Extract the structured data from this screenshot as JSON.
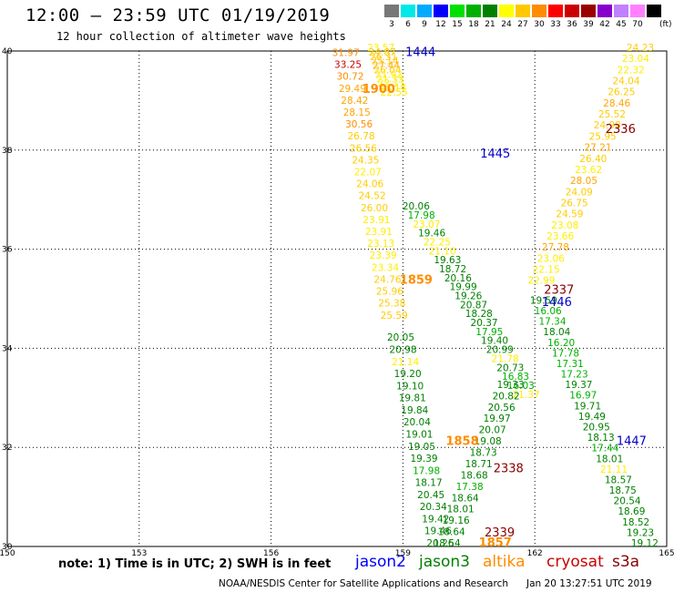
{
  "header": {
    "title": "12:00 – 23:59 UTC 01/19/2019",
    "subtitle": "12 hour collection of altimeter wave heights"
  },
  "color_scale": {
    "unit": "(ft)",
    "bins": [
      {
        "label": "3",
        "color": "#777777"
      },
      {
        "label": "6",
        "color": "#00e8e8"
      },
      {
        "label": "9",
        "color": "#00aaff"
      },
      {
        "label": "12",
        "color": "#0000ff"
      },
      {
        "label": "15",
        "color": "#00e000"
      },
      {
        "label": "18",
        "color": "#00b000"
      },
      {
        "label": "21",
        "color": "#008000"
      },
      {
        "label": "24",
        "color": "#ffff00"
      },
      {
        "label": "27",
        "color": "#ffc800"
      },
      {
        "label": "30",
        "color": "#ff8c00"
      },
      {
        "label": "33",
        "color": "#ff0000"
      },
      {
        "label": "36",
        "color": "#cc0000"
      },
      {
        "label": "39",
        "color": "#990000"
      },
      {
        "label": "42",
        "color": "#8800cc"
      },
      {
        "label": "45",
        "color": "#c080ff"
      },
      {
        "label": "70",
        "color": "#ff80ff"
      },
      {
        "label": "",
        "color": "#000000"
      }
    ]
  },
  "map": {
    "lon_ticks": [
      "150",
      "153",
      "156",
      "159",
      "162",
      "165"
    ],
    "lat_ticks": [
      "40",
      "38",
      "36",
      "34",
      "32",
      "30"
    ],
    "lon_range": [
      150,
      165
    ],
    "lat_range": [
      30,
      40
    ],
    "grid": "dotted",
    "passes": [
      {
        "label": "1444",
        "satellite": "jason2",
        "lon": 159.4,
        "lat": 39.9
      },
      {
        "label": "1445",
        "satellite": "jason2",
        "lon": 161.1,
        "lat": 37.85
      },
      {
        "label": "1446",
        "satellite": "jason2",
        "lon": 162.5,
        "lat": 34.85
      },
      {
        "label": "1447",
        "satellite": "jason2",
        "lon": 164.2,
        "lat": 32.05
      },
      {
        "label": "1900",
        "satellite": "altika",
        "lon": 158.45,
        "lat": 39.15
      },
      {
        "label": "1859",
        "satellite": "altika",
        "lon": 159.3,
        "lat": 35.3
      },
      {
        "label": "1858",
        "satellite": "altika",
        "lon": 160.35,
        "lat": 32.05
      },
      {
        "label": "1857",
        "satellite": "altika",
        "lon": 161.1,
        "lat": 30.0
      },
      {
        "label": "2336",
        "satellite": "s3a",
        "lon": 163.95,
        "lat": 38.35
      },
      {
        "label": "2337",
        "satellite": "s3a",
        "lon": 162.55,
        "lat": 35.1
      },
      {
        "label": "2338",
        "satellite": "s3a",
        "lon": 161.4,
        "lat": 31.5
      },
      {
        "label": "2339",
        "satellite": "s3a",
        "lon": 161.2,
        "lat": 30.2
      }
    ],
    "tracks": [
      {
        "satellite": "altika_a",
        "lon0": 157.7,
        "lat0": 39.9,
        "lon1": 158.8,
        "lat1": 34.6,
        "values": [
          "31.97",
          "33.25",
          "30.72",
          "29.49",
          "28.42",
          "28.15",
          "30.56",
          "26.78",
          "26.56",
          "24.35",
          "22.07",
          "24.06",
          "24.52",
          "26.00",
          "23.91",
          "23.91",
          "23.13",
          "23.39",
          "23.34",
          "24.76",
          "25.96",
          "25.38",
          "25.59"
        ]
      },
      {
        "satellite": "altika_b",
        "lon0": 158.5,
        "lat0": 40.0,
        "lon1": 158.8,
        "lat1": 39.1,
        "values": [
          "23.57",
          "24.87",
          "26.31",
          "25.14",
          "27.44",
          "26.04",
          "21.92",
          "21.33",
          "22.11",
          "23.14",
          "22.55"
        ]
      },
      {
        "satellite": "jason3_a",
        "lon0": 158.95,
        "lat0": 34.15,
        "lon1": 159.85,
        "lat1": 30.0,
        "values": [
          "20.05",
          "20.98",
          "21.14",
          "19.20",
          "19.10",
          "19.81",
          "19.84",
          "20.04",
          "19.01",
          "19.05",
          "19.39",
          "17.98",
          "18.17",
          "20.45",
          "20.34",
          "19.42",
          "19.46",
          "20.26"
        ]
      },
      {
        "satellite": "jason3_b",
        "lon0": 159.3,
        "lat0": 36.8,
        "lon1": 161.8,
        "lat1": 33.0,
        "values": [
          "20.06",
          "17.98",
          "23.07",
          "19.46",
          "22.25",
          "21.10",
          "19.63",
          "18.72",
          "20.16",
          "19.99",
          "19.26",
          "20.87",
          "18.28",
          "20.37",
          "17.95",
          "19.40",
          "20.99",
          "21.78",
          "20.73",
          "16.83",
          "16.03",
          "21.37"
        ]
      },
      {
        "satellite": "jason3_c",
        "lon0": 161.45,
        "lat0": 33.2,
        "lon1": 160.0,
        "lat1": 30.0,
        "values": [
          "19.33",
          "20.82",
          "20.56",
          "19.97",
          "20.07",
          "19.08",
          "18.73",
          "18.71",
          "18.68",
          "17.38",
          "18.64",
          "18.01",
          "19.16",
          "18.64",
          "18.54"
        ]
      },
      {
        "satellite": "s3a_a",
        "lon0": 164.4,
        "lat0": 40.0,
        "lon1": 162.15,
        "lat1": 35.3,
        "values": [
          "24.23",
          "23.04",
          "22.32",
          "24.04",
          "26.25",
          "28.46",
          "25.52",
          "24.98",
          "25.95",
          "27.21",
          "26.40",
          "23.62",
          "28.05",
          "24.09",
          "26.75",
          "24.59",
          "23.08",
          "23.66",
          "27.78",
          "23.06",
          "22.15",
          "22.99"
        ]
      },
      {
        "satellite": "jason3_d",
        "lon0": 162.2,
        "lat0": 34.9,
        "lon1": 164.5,
        "lat1": 30.0,
        "values": [
          "19.59",
          "16.06",
          "17.34",
          "18.04",
          "16.20",
          "17.78",
          "17.31",
          "17.23",
          "19.37",
          "16.97",
          "19.71",
          "19.49",
          "20.95",
          "18.13",
          "17.44",
          "18.01",
          "21.11",
          "18.57",
          "18.75",
          "20.54",
          "18.69",
          "18.52",
          "19.23",
          "19.12"
        ]
      }
    ]
  },
  "footer": {
    "note": "note: 1) Time is in UTC; 2) SWH is in feet",
    "legend": [
      {
        "label": "jason2",
        "color": "#0000ff"
      },
      {
        "label": "jason3",
        "color": "#008000"
      },
      {
        "label": "altika",
        "color": "#ff8c00"
      },
      {
        "label": "cryosat",
        "color": "#cc0000"
      },
      {
        "label": "s3a",
        "color": "#880000"
      }
    ],
    "credit": "NOAA/NESDIS Center for Satellite Applications and Research",
    "timestamp": "Jan 20 13:27:51 UTC 2019"
  }
}
